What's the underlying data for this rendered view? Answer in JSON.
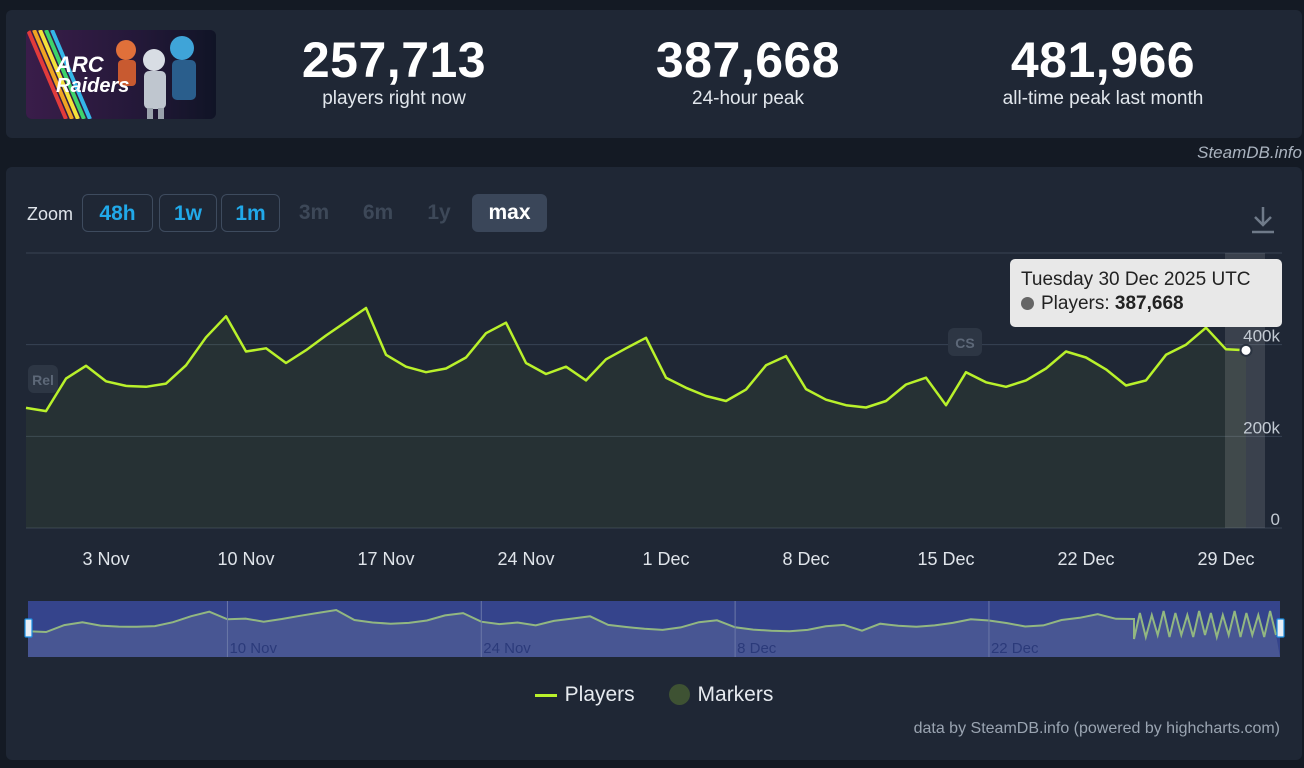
{
  "header": {
    "logo_text_1": "ARC",
    "logo_text_2": "Raiders",
    "stats": [
      {
        "value": "257,713",
        "label": "players right now"
      },
      {
        "value": "387,668",
        "label": "24-hour peak"
      },
      {
        "value": "481,966",
        "label": "all-time peak last month"
      }
    ],
    "credit": "SteamDB.info"
  },
  "zoom": {
    "label": "Zoom",
    "buttons": [
      {
        "label": "48h",
        "state": "active"
      },
      {
        "label": "1w",
        "state": "active"
      },
      {
        "label": "1m",
        "state": "active"
      },
      {
        "label": "3m",
        "state": "disabled"
      },
      {
        "label": "6m",
        "state": "disabled"
      },
      {
        "label": "1y",
        "state": "disabled"
      },
      {
        "label": "max",
        "state": "selected"
      }
    ]
  },
  "icons": {
    "download": "download-icon",
    "zoom_handle": "navigator-handle-icon"
  },
  "colors": {
    "series": "#b9f12b",
    "marker": "#3e5233",
    "navigator_mask": "#2c3a78",
    "link": "#21a9e9"
  },
  "tooltip": {
    "date": "Tuesday 30 Dec 2025 UTC",
    "series": "Players",
    "value": "387,668"
  },
  "legend": {
    "players": "Players",
    "markers": "Markers"
  },
  "credit_bottom": "data by SteamDB.info (powered by highcharts.com)",
  "chart_data": {
    "type": "line",
    "y_ticks": [
      "0",
      "200k",
      "400k"
    ],
    "ylim": [
      0,
      600000
    ],
    "x_ticks": [
      "3 Nov",
      "10 Nov",
      "17 Nov",
      "24 Nov",
      "1 Dec",
      "8 Dec",
      "15 Dec",
      "22 Dec",
      "29 Dec"
    ],
    "x_range": [
      "2025-10-30",
      "2025-12-30"
    ],
    "series": [
      {
        "name": "Players",
        "x": [
          "2025-10-30",
          "2025-10-31",
          "2025-11-01",
          "2025-11-02",
          "2025-11-03",
          "2025-11-04",
          "2025-11-05",
          "2025-11-06",
          "2025-11-07",
          "2025-11-08",
          "2025-11-09",
          "2025-11-10",
          "2025-11-11",
          "2025-11-12",
          "2025-11-13",
          "2025-11-14",
          "2025-11-15",
          "2025-11-16",
          "2025-11-17",
          "2025-11-18",
          "2025-11-19",
          "2025-11-20",
          "2025-11-21",
          "2025-11-22",
          "2025-11-23",
          "2025-11-24",
          "2025-11-25",
          "2025-11-26",
          "2025-11-27",
          "2025-11-28",
          "2025-11-29",
          "2025-11-30",
          "2025-12-01",
          "2025-12-02",
          "2025-12-03",
          "2025-12-04",
          "2025-12-05",
          "2025-12-06",
          "2025-12-07",
          "2025-12-08",
          "2025-12-09",
          "2025-12-10",
          "2025-12-11",
          "2025-12-12",
          "2025-12-13",
          "2025-12-14",
          "2025-12-15",
          "2025-12-16",
          "2025-12-17",
          "2025-12-18",
          "2025-12-19",
          "2025-12-20",
          "2025-12-21",
          "2025-12-22",
          "2025-12-23",
          "2025-12-24",
          "2025-12-25",
          "2025-12-26",
          "2025-12-27",
          "2025-12-28",
          "2025-12-29",
          "2025-12-30"
        ],
        "values": [
          262000,
          255000,
          326000,
          354000,
          320000,
          310000,
          308000,
          315000,
          355000,
          416000,
          462000,
          385000,
          392000,
          360000,
          388000,
          420000,
          450000,
          480000,
          378000,
          352000,
          340000,
          348000,
          372000,
          425000,
          448000,
          360000,
          336000,
          352000,
          322000,
          368000,
          392000,
          415000,
          328000,
          306000,
          288000,
          277000,
          302000,
          355000,
          375000,
          303000,
          280000,
          268000,
          263000,
          277000,
          313000,
          328000,
          268000,
          340000,
          318000,
          308000,
          322000,
          348000,
          385000,
          372000,
          346000,
          311000,
          322000,
          378000,
          400000,
          437000,
          390000,
          387668
        ]
      }
    ],
    "navigator": {
      "x_ticks": [
        "10 Nov",
        "24 Nov",
        "8 Dec",
        "22 Dec"
      ]
    }
  }
}
